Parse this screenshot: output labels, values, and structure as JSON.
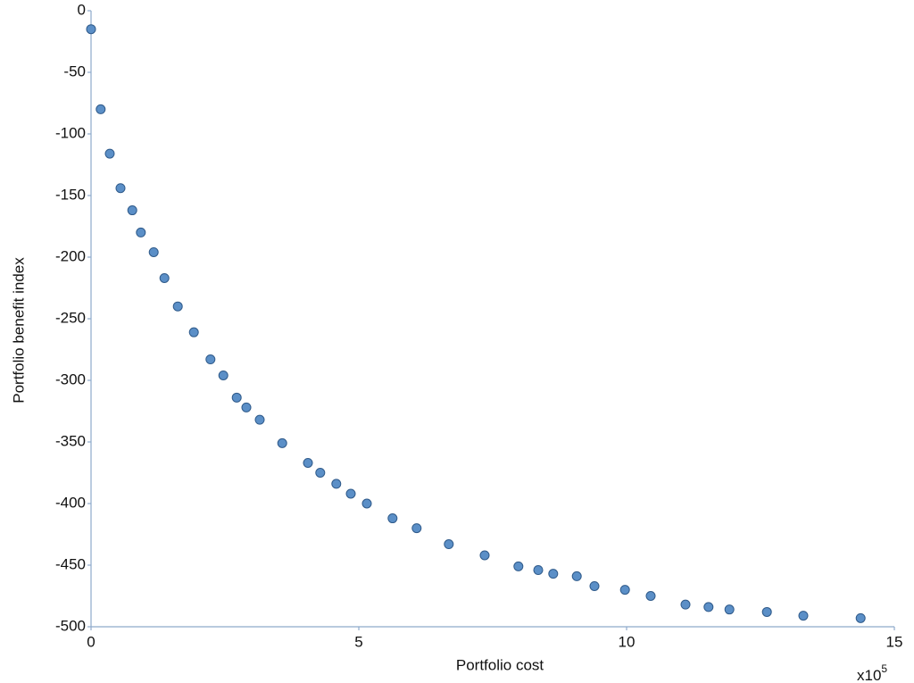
{
  "chart_data": {
    "type": "scatter",
    "x_label": "Portfolio cost",
    "y_label": "Portfolio benefit index",
    "x_multiplier": "x10",
    "x_multiplier_exponent": "5",
    "color": "#5b8fc7",
    "x": [
      0.0,
      0.18,
      0.35,
      0.55,
      0.77,
      0.93,
      1.17,
      1.37,
      1.62,
      1.92,
      2.23,
      2.47,
      2.72,
      2.9,
      3.15,
      3.57,
      4.05,
      4.28,
      4.58,
      4.85,
      5.15,
      5.63,
      6.08,
      6.68,
      7.35,
      7.98,
      8.35,
      8.63,
      9.07,
      9.4,
      9.97,
      10.45,
      11.1,
      11.53,
      11.92,
      12.62,
      13.3,
      14.37
    ],
    "values": [
      -15,
      -80,
      -116,
      -144,
      -162,
      -180,
      -196,
      -217,
      -240,
      -261,
      -283,
      -296,
      -314,
      -322,
      -332,
      -351,
      -367,
      -375,
      -384,
      -392,
      -400,
      -412,
      -420,
      -433,
      -442,
      -451,
      -454,
      -457,
      -459,
      -467,
      -470,
      -475,
      -482,
      -484,
      -486,
      -488,
      -491,
      -493
    ],
    "xlim": [
      0,
      15
    ],
    "xticks": [
      0,
      5,
      10,
      15
    ],
    "ylim": [
      -500,
      0
    ],
    "yticks": [
      0,
      -50,
      -100,
      -150,
      -200,
      -250,
      -300,
      -350,
      -400,
      -450,
      -500
    ]
  }
}
